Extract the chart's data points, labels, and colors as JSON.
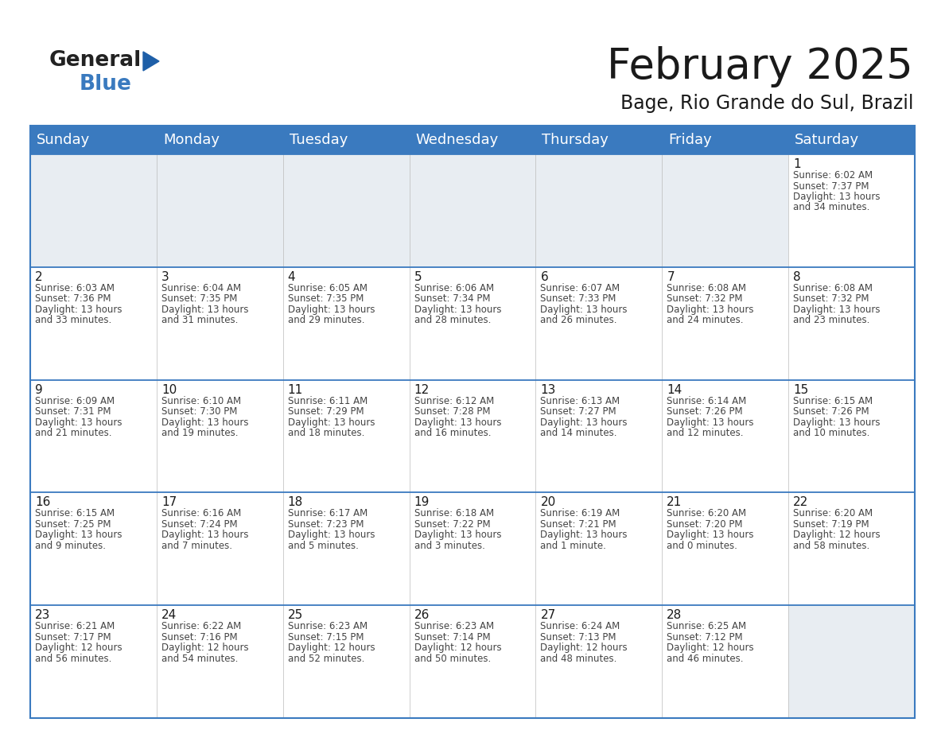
{
  "title": "February 2025",
  "subtitle": "Bage, Rio Grande do Sul, Brazil",
  "header_color": "#3a7abf",
  "header_text_color": "#ffffff",
  "cell_bg_white": "#ffffff",
  "cell_bg_gray": "#e8edf2",
  "border_color": "#3a7abf",
  "days_of_week": [
    "Sunday",
    "Monday",
    "Tuesday",
    "Wednesday",
    "Thursday",
    "Friday",
    "Saturday"
  ],
  "weeks": [
    [
      null,
      null,
      null,
      null,
      null,
      null,
      {
        "day": "1",
        "sunrise": "6:02 AM",
        "sunset": "7:37 PM",
        "daylight": "13 hours",
        "daylight2": "and 34 minutes."
      }
    ],
    [
      {
        "day": "2",
        "sunrise": "6:03 AM",
        "sunset": "7:36 PM",
        "daylight": "13 hours",
        "daylight2": "and 33 minutes."
      },
      {
        "day": "3",
        "sunrise": "6:04 AM",
        "sunset": "7:35 PM",
        "daylight": "13 hours",
        "daylight2": "and 31 minutes."
      },
      {
        "day": "4",
        "sunrise": "6:05 AM",
        "sunset": "7:35 PM",
        "daylight": "13 hours",
        "daylight2": "and 29 minutes."
      },
      {
        "day": "5",
        "sunrise": "6:06 AM",
        "sunset": "7:34 PM",
        "daylight": "13 hours",
        "daylight2": "and 28 minutes."
      },
      {
        "day": "6",
        "sunrise": "6:07 AM",
        "sunset": "7:33 PM",
        "daylight": "13 hours",
        "daylight2": "and 26 minutes."
      },
      {
        "day": "7",
        "sunrise": "6:08 AM",
        "sunset": "7:32 PM",
        "daylight": "13 hours",
        "daylight2": "and 24 minutes."
      },
      {
        "day": "8",
        "sunrise": "6:08 AM",
        "sunset": "7:32 PM",
        "daylight": "13 hours",
        "daylight2": "and 23 minutes."
      }
    ],
    [
      {
        "day": "9",
        "sunrise": "6:09 AM",
        "sunset": "7:31 PM",
        "daylight": "13 hours",
        "daylight2": "and 21 minutes."
      },
      {
        "day": "10",
        "sunrise": "6:10 AM",
        "sunset": "7:30 PM",
        "daylight": "13 hours",
        "daylight2": "and 19 minutes."
      },
      {
        "day": "11",
        "sunrise": "6:11 AM",
        "sunset": "7:29 PM",
        "daylight": "13 hours",
        "daylight2": "and 18 minutes."
      },
      {
        "day": "12",
        "sunrise": "6:12 AM",
        "sunset": "7:28 PM",
        "daylight": "13 hours",
        "daylight2": "and 16 minutes."
      },
      {
        "day": "13",
        "sunrise": "6:13 AM",
        "sunset": "7:27 PM",
        "daylight": "13 hours",
        "daylight2": "and 14 minutes."
      },
      {
        "day": "14",
        "sunrise": "6:14 AM",
        "sunset": "7:26 PM",
        "daylight": "13 hours",
        "daylight2": "and 12 minutes."
      },
      {
        "day": "15",
        "sunrise": "6:15 AM",
        "sunset": "7:26 PM",
        "daylight": "13 hours",
        "daylight2": "and 10 minutes."
      }
    ],
    [
      {
        "day": "16",
        "sunrise": "6:15 AM",
        "sunset": "7:25 PM",
        "daylight": "13 hours",
        "daylight2": "and 9 minutes."
      },
      {
        "day": "17",
        "sunrise": "6:16 AM",
        "sunset": "7:24 PM",
        "daylight": "13 hours",
        "daylight2": "and 7 minutes."
      },
      {
        "day": "18",
        "sunrise": "6:17 AM",
        "sunset": "7:23 PM",
        "daylight": "13 hours",
        "daylight2": "and 5 minutes."
      },
      {
        "day": "19",
        "sunrise": "6:18 AM",
        "sunset": "7:22 PM",
        "daylight": "13 hours",
        "daylight2": "and 3 minutes."
      },
      {
        "day": "20",
        "sunrise": "6:19 AM",
        "sunset": "7:21 PM",
        "daylight": "13 hours",
        "daylight2": "and 1 minute."
      },
      {
        "day": "21",
        "sunrise": "6:20 AM",
        "sunset": "7:20 PM",
        "daylight": "13 hours",
        "daylight2": "and 0 minutes."
      },
      {
        "day": "22",
        "sunrise": "6:20 AM",
        "sunset": "7:19 PM",
        "daylight": "12 hours",
        "daylight2": "and 58 minutes."
      }
    ],
    [
      {
        "day": "23",
        "sunrise": "6:21 AM",
        "sunset": "7:17 PM",
        "daylight": "12 hours",
        "daylight2": "and 56 minutes."
      },
      {
        "day": "24",
        "sunrise": "6:22 AM",
        "sunset": "7:16 PM",
        "daylight": "12 hours",
        "daylight2": "and 54 minutes."
      },
      {
        "day": "25",
        "sunrise": "6:23 AM",
        "sunset": "7:15 PM",
        "daylight": "12 hours",
        "daylight2": "and 52 minutes."
      },
      {
        "day": "26",
        "sunrise": "6:23 AM",
        "sunset": "7:14 PM",
        "daylight": "12 hours",
        "daylight2": "and 50 minutes."
      },
      {
        "day": "27",
        "sunrise": "6:24 AM",
        "sunset": "7:13 PM",
        "daylight": "12 hours",
        "daylight2": "and 48 minutes."
      },
      {
        "day": "28",
        "sunrise": "6:25 AM",
        "sunset": "7:12 PM",
        "daylight": "12 hours",
        "daylight2": "and 46 minutes."
      },
      null
    ]
  ],
  "title_fontsize": 38,
  "subtitle_fontsize": 17,
  "day_header_fontsize": 13,
  "day_number_fontsize": 11,
  "cell_text_fontsize": 8.5,
  "logo_general_fontsize": 19,
  "logo_blue_fontsize": 19
}
